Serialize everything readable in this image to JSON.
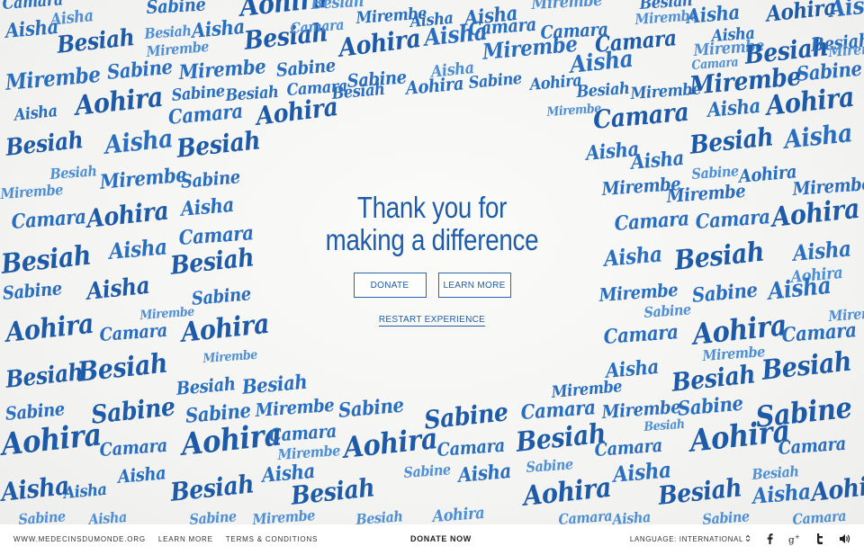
{
  "hero": {
    "headline": "Thank you for\nmaking a difference",
    "donate_label": "DONATE",
    "learn_more_label": "LEARN MORE",
    "restart_label": "RESTART EXPERIENCE"
  },
  "background_names": [
    "Aisha",
    "Aohira",
    "Besiah",
    "Sabine",
    "Camara",
    "Mirembe"
  ],
  "footer": {
    "site_link": "WWW.MEDECINSDUMONDE.ORG",
    "learn_more": "LEARN MORE",
    "terms": "TERMS & CONDITIONS",
    "donate_now": "DONATE NOW",
    "language": "LANGUAGE: INTERNATIONAL"
  },
  "icons": [
    "facebook-icon",
    "google-plus-icon",
    "twitter-icon",
    "sound-icon",
    "language-chevron-icon"
  ],
  "colors": {
    "accent": "#1f5ca8",
    "ink": "#2a6fbf",
    "background": "#f3f3f1",
    "footer": "#ffffff"
  }
}
